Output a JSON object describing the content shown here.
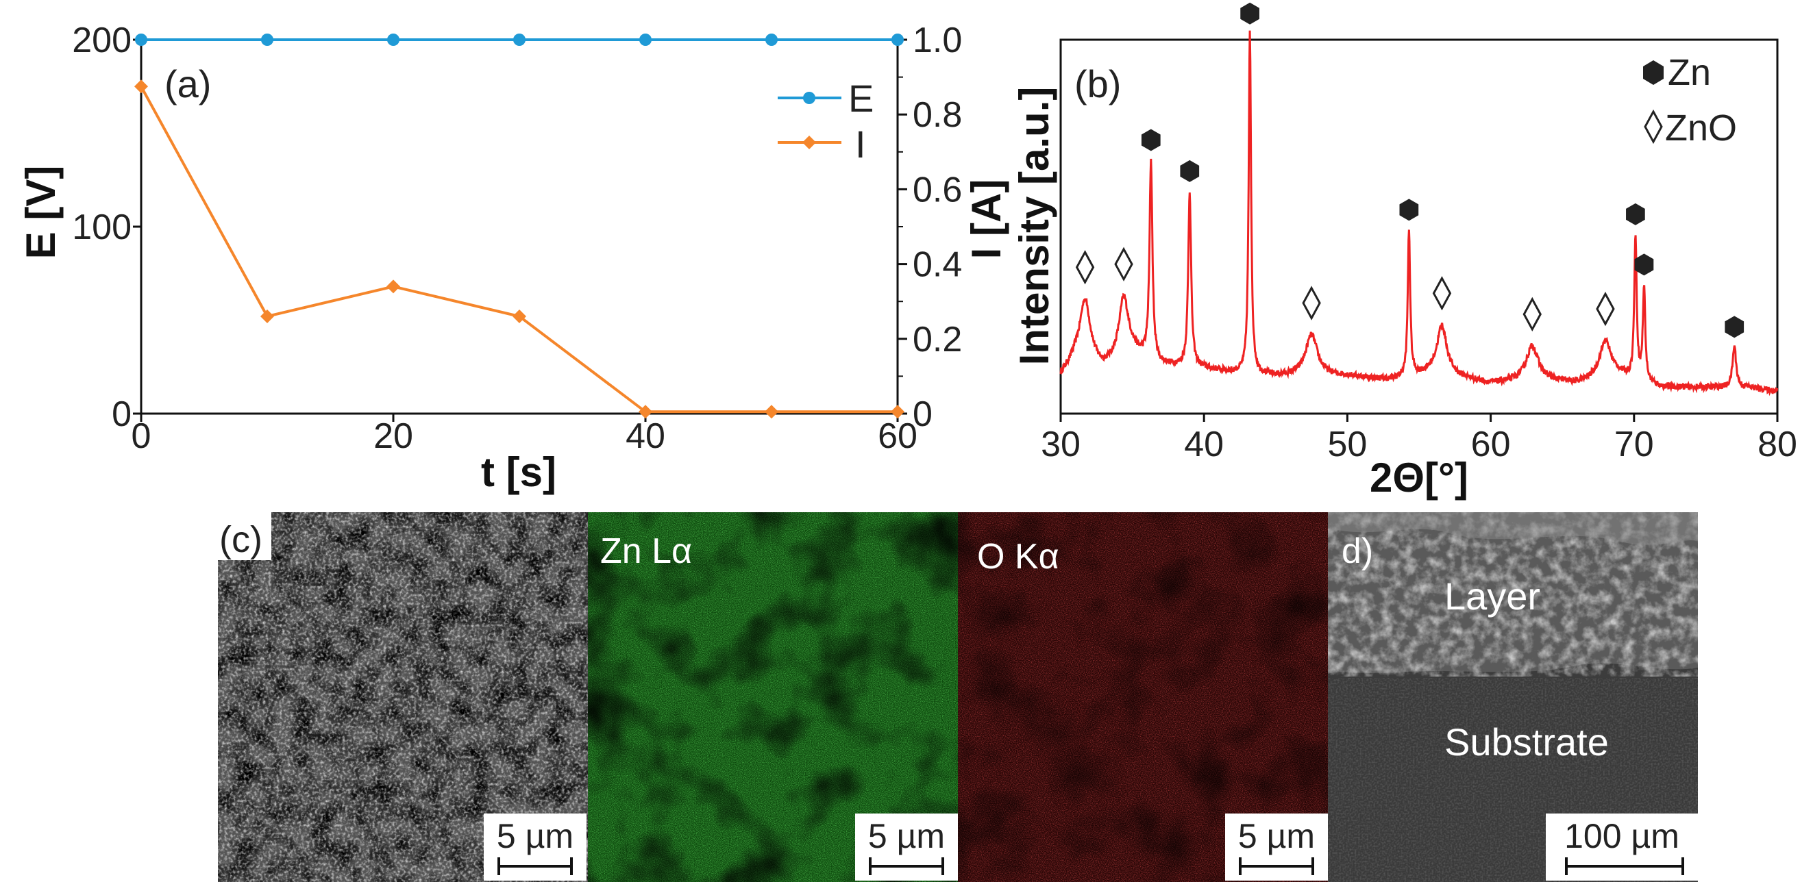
{
  "chart_data": [
    {
      "type": "line",
      "panel_label": "(a)",
      "xlabel": "t [s]",
      "ylabel_left": "E [V]",
      "ylabel_right": "I [A]",
      "xlim": [
        0,
        60
      ],
      "ylim_left": [
        0,
        200
      ],
      "ylim_right": [
        0,
        1.0
      ],
      "x_ticks": [
        "0",
        "20",
        "40",
        "60"
      ],
      "y_left_ticks": [
        "0",
        "100",
        "200"
      ],
      "y_right_ticks": [
        "0",
        "0.2",
        "0.4",
        "0.6",
        "0.8",
        "1.0"
      ],
      "x": [
        0,
        10,
        20,
        30,
        40,
        50,
        60
      ],
      "series": [
        {
          "name": "E",
          "axis": "left",
          "color": "#1f9ad6",
          "marker": "circle",
          "values": [
            200,
            200,
            200,
            200,
            200,
            200,
            200
          ]
        },
        {
          "name": "I",
          "axis": "right",
          "color": "#f5862b",
          "marker": "diamond",
          "values": [
            0.875,
            0.26,
            0.34,
            0.26,
            0.005,
            0.005,
            0.005
          ]
        }
      ],
      "legend": [
        "E",
        "I"
      ],
      "legend_position": "top-right"
    },
    {
      "type": "line",
      "panel_label": "(b)",
      "xlabel": "2Θ[°]",
      "ylabel": "Intensity [a.u.]",
      "xlim": [
        30,
        80
      ],
      "ylim": [
        0,
        100
      ],
      "x_ticks": [
        "30",
        "40",
        "50",
        "60",
        "70",
        "80"
      ],
      "color": "#ee2222",
      "baseline": [
        [
          30,
          10
        ],
        [
          31,
          14
        ],
        [
          33,
          12
        ],
        [
          35,
          16
        ],
        [
          37,
          13
        ],
        [
          40,
          12
        ],
        [
          42,
          11
        ],
        [
          45,
          10
        ],
        [
          50,
          10
        ],
        [
          53,
          9
        ],
        [
          56,
          11
        ],
        [
          60,
          8
        ],
        [
          63,
          9
        ],
        [
          66,
          8
        ],
        [
          69,
          10
        ],
        [
          72,
          7
        ],
        [
          76,
          7
        ],
        [
          78,
          7
        ],
        [
          80,
          6
        ]
      ],
      "peaks": [
        {
          "x": 31.7,
          "h": 17,
          "w": 0.45,
          "phase": "ZnO"
        },
        {
          "x": 34.4,
          "h": 16,
          "w": 0.4,
          "phase": "ZnO"
        },
        {
          "x": 36.3,
          "h": 53,
          "w": 0.12,
          "phase": "Zn"
        },
        {
          "x": 39.0,
          "h": 47,
          "w": 0.12,
          "phase": "Zn"
        },
        {
          "x": 43.2,
          "h": 91,
          "w": 0.1,
          "phase": "Zn"
        },
        {
          "x": 47.5,
          "h": 11,
          "w": 0.5,
          "phase": "ZnO"
        },
        {
          "x": 54.3,
          "h": 39,
          "w": 0.1,
          "phase": "Zn"
        },
        {
          "x": 56.6,
          "h": 13,
          "w": 0.4,
          "phase": "ZnO"
        },
        {
          "x": 62.9,
          "h": 9,
          "w": 0.5,
          "phase": "ZnO"
        },
        {
          "x": 68.0,
          "h": 10,
          "w": 0.5,
          "phase": "ZnO"
        },
        {
          "x": 70.1,
          "h": 38,
          "w": 0.1,
          "phase": "Zn"
        },
        {
          "x": 70.7,
          "h": 25,
          "w": 0.1,
          "phase": "Zn"
        },
        {
          "x": 77.0,
          "h": 11,
          "w": 0.15,
          "phase": "Zn"
        }
      ],
      "markers": [
        {
          "x": 31.7,
          "phase": "ZnO"
        },
        {
          "x": 34.4,
          "phase": "ZnO"
        },
        {
          "x": 36.3,
          "phase": "Zn"
        },
        {
          "x": 39.0,
          "phase": "Zn"
        },
        {
          "x": 43.2,
          "phase": "Zn"
        },
        {
          "x": 47.5,
          "phase": "ZnO"
        },
        {
          "x": 54.3,
          "phase": "Zn"
        },
        {
          "x": 56.6,
          "phase": "ZnO"
        },
        {
          "x": 62.9,
          "phase": "ZnO"
        },
        {
          "x": 68.0,
          "phase": "ZnO"
        },
        {
          "x": 70.1,
          "phase": "Zn"
        },
        {
          "x": 70.7,
          "phase": "Zn"
        },
        {
          "x": 77.0,
          "phase": "Zn"
        }
      ],
      "legend": [
        "Zn",
        "ZnO"
      ],
      "legend_position": "top-right"
    }
  ],
  "images": {
    "panel_c_label": "(c)",
    "sem_scale": "5 µm",
    "zn_label": "Zn Lα",
    "zn_scale": "5 µm",
    "o_label": "O Kα",
    "o_scale": "5 µm",
    "panel_d_label": "d)",
    "cross_layer": "Layer",
    "cross_substrate": "Substrate",
    "cross_scale": "100 µm"
  }
}
